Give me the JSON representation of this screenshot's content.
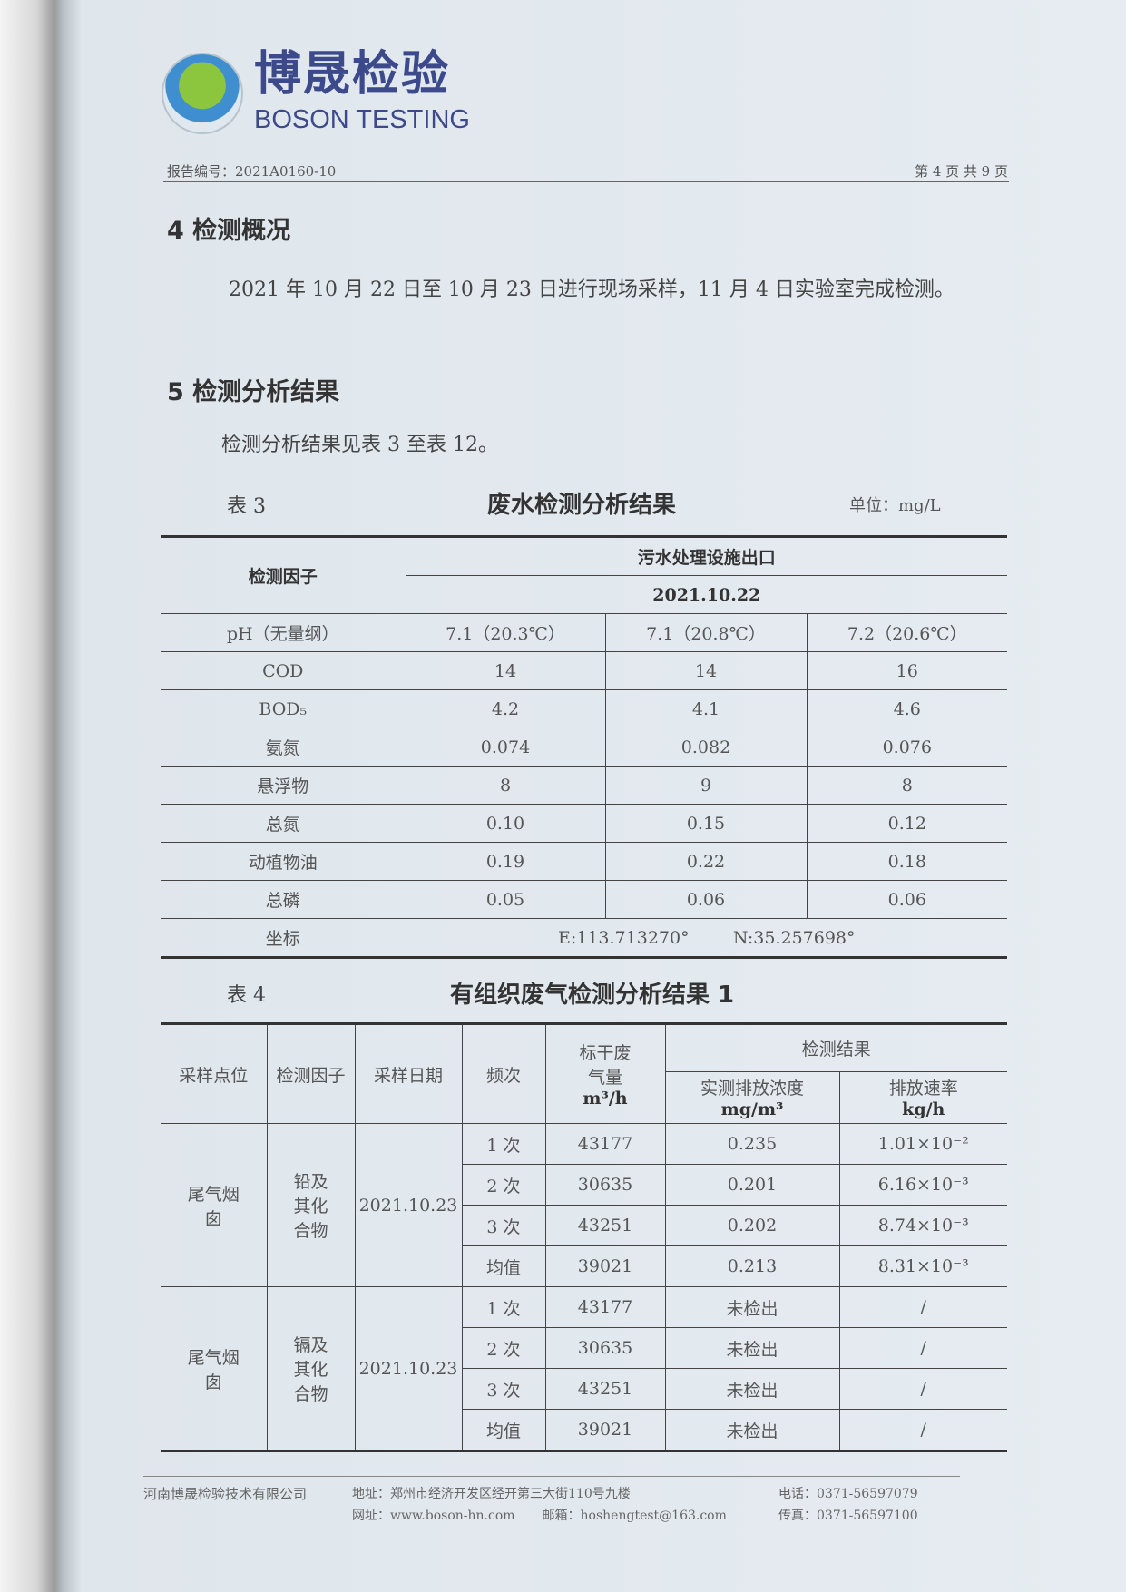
{
  "logo": {
    "cn": "博晟检验",
    "en": "BOSON TESTING"
  },
  "header": {
    "report_no": "报告编号：2021A0160-10",
    "page": "第 4 页 共 9 页"
  },
  "sec4": {
    "title": "4 检测概况",
    "text": "2021 年 10 月 22 日至 10 月 23 日进行现场采样，11 月 4 日实验室完成检测。"
  },
  "sec5": {
    "title": "5 检测分析结果",
    "text": "检测分析结果见表 3 至表 12。"
  },
  "table3": {
    "label": "表 3",
    "title": "废水检测分析结果",
    "unit": "单位：mg/L",
    "h_factor": "检测因子",
    "h_site": "污水处理设施出口",
    "h_date": "2021.10.22",
    "rows": [
      [
        "pH（无量纲）",
        "7.1（20.3℃）",
        "7.1（20.8℃）",
        "7.2（20.6℃）"
      ],
      [
        "COD",
        "14",
        "14",
        "16"
      ],
      [
        "BOD₅",
        "4.2",
        "4.1",
        "4.6"
      ],
      [
        "氨氮",
        "0.074",
        "0.082",
        "0.076"
      ],
      [
        "悬浮物",
        "8",
        "9",
        "8"
      ],
      [
        "总氮",
        "0.10",
        "0.15",
        "0.12"
      ],
      [
        "动植物油",
        "0.19",
        "0.22",
        "0.18"
      ],
      [
        "总磷",
        "0.05",
        "0.06",
        "0.06"
      ]
    ],
    "coord_label": "坐标",
    "coord_e": "E:113.713270°",
    "coord_n": "N:35.257698°"
  },
  "table4": {
    "label": "表 4",
    "title": "有组织废气检测分析结果 1",
    "h": {
      "site": "采样点位",
      "factor": "检测因子",
      "date": "采样日期",
      "freq": "频次",
      "flow": "标干废气量",
      "flow_unit": "m³/h",
      "result": "检测结果",
      "conc": "实测排放浓度",
      "conc_unit": "mg/m³",
      "rate": "排放速率",
      "rate_unit": "kg/h"
    },
    "groups": [
      {
        "site": "尾气烟囱",
        "factor": "铅及其化合物",
        "date": "2021.10.23",
        "rows": [
          [
            "1 次",
            "43177",
            "0.235",
            "1.01×10⁻²"
          ],
          [
            "2 次",
            "30635",
            "0.201",
            "6.16×10⁻³"
          ],
          [
            "3 次",
            "43251",
            "0.202",
            "8.74×10⁻³"
          ],
          [
            "均值",
            "39021",
            "0.213",
            "8.31×10⁻³"
          ]
        ]
      },
      {
        "site": "尾气烟囱",
        "factor": "镉及其化合物",
        "date": "2021.10.23",
        "rows": [
          [
            "1 次",
            "43177",
            "未检出",
            "/"
          ],
          [
            "2 次",
            "30635",
            "未检出",
            "/"
          ],
          [
            "3 次",
            "43251",
            "未检出",
            "/"
          ],
          [
            "均值",
            "39021",
            "未检出",
            "/"
          ]
        ]
      }
    ]
  },
  "footer": {
    "company": "河南博晟检验技术有限公司",
    "address": "地址：郑州市经济开发区经开第三大街110号九楼",
    "tel": "电话：0371-56597079",
    "web": "网址：www.boson-hn.com",
    "email": "邮箱：hoshengtest@163.com",
    "fax": "传真：0371-56597100"
  }
}
